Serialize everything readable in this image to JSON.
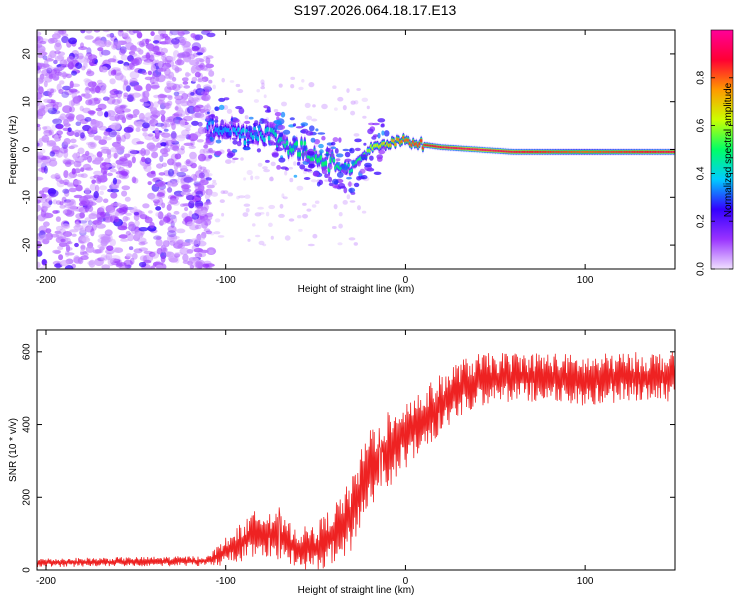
{
  "title": "S197.2026.064.18.17.E13",
  "chart_data": [
    {
      "type": "heatmap",
      "name": "spectrogram",
      "xlabel": "Height of straight line (km)",
      "ylabel": "Frequency (Hz)",
      "xlim": [
        -205,
        150
      ],
      "ylim": [
        -25,
        25
      ],
      "xticks": [
        -200,
        -100,
        0,
        100
      ],
      "xtick_labels": [
        "-200",
        "-100",
        "0",
        "100"
      ],
      "yticks": [
        -20,
        -10,
        0,
        10,
        20
      ],
      "ytick_labels": [
        "-20",
        "-10",
        "0",
        "10",
        "20"
      ],
      "colorbar": {
        "label": "Normalized spectral amplitude",
        "range": [
          0,
          1
        ],
        "ticks": [
          0.0,
          0.2,
          0.4,
          0.6,
          0.8
        ],
        "tick_labels": [
          "0.0",
          "0.2",
          "0.4",
          "0.6",
          "0.8"
        ],
        "colors": [
          "#f0e0ff",
          "#9933ff",
          "#3300ff",
          "#00ccff",
          "#00ff66",
          "#ccff00",
          "#ff9900",
          "#ff0033",
          "#ff0099"
        ]
      },
      "ridge": {
        "x": [
          -110,
          -100,
          -90,
          -80,
          -70,
          -60,
          -50,
          -40,
          -30,
          -20,
          -10,
          0,
          10,
          20,
          40,
          60,
          80,
          100,
          120,
          150
        ],
        "frequency": [
          4,
          5,
          3,
          4,
          2,
          0,
          -1,
          -3,
          -4,
          0,
          1,
          2,
          1,
          0.5,
          0,
          -0.5,
          -0.5,
          -0.5,
          -0.5,
          -0.5
        ],
        "amplitude": [
          0.35,
          0.35,
          0.4,
          0.4,
          0.45,
          0.5,
          0.5,
          0.5,
          0.45,
          0.6,
          0.7,
          0.8,
          0.85,
          0.9,
          0.95,
          0.9,
          0.85,
          0.8,
          0.85,
          0.9
        ]
      },
      "noise_region_x": [
        -205,
        -108
      ]
    },
    {
      "type": "line",
      "name": "snr",
      "xlabel": "Height of straight line (km)",
      "ylabel": "SNR (10 * v/v)",
      "xlim": [
        -205,
        150
      ],
      "ylim": [
        0,
        660
      ],
      "xticks": [
        -200,
        -100,
        0,
        100
      ],
      "xtick_labels": [
        "-200",
        "-100",
        "0",
        "100"
      ],
      "yticks": [
        0,
        200,
        400,
        600
      ],
      "ytick_labels": [
        "0",
        "200",
        "400",
        "600"
      ],
      "color": "#ee2222",
      "trend": {
        "x": [
          -205,
          -110,
          -100,
          -90,
          -80,
          -70,
          -60,
          -50,
          -40,
          -30,
          -20,
          -10,
          0,
          10,
          20,
          30,
          40,
          60,
          80,
          100,
          120,
          150
        ],
        "snr": [
          20,
          25,
          50,
          80,
          110,
          90,
          60,
          60,
          100,
          150,
          280,
          330,
          380,
          410,
          460,
          500,
          520,
          530,
          530,
          520,
          530,
          530
        ]
      },
      "noise_amplitude": {
        "x": [
          -205,
          -110,
          -100,
          -80,
          -60,
          -40,
          -20,
          0,
          20,
          60,
          150
        ],
        "amp": [
          12,
          14,
          40,
          70,
          55,
          80,
          120,
          100,
          80,
          70,
          70
        ]
      }
    }
  ]
}
